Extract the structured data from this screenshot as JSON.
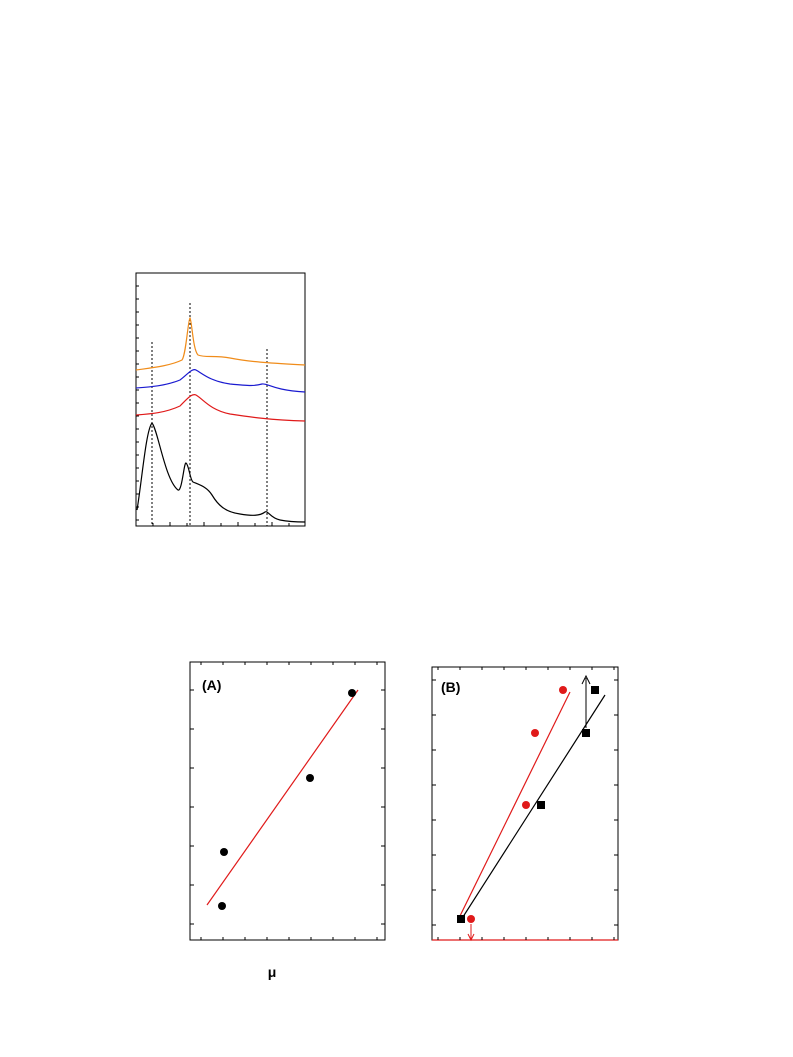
{
  "figure": {
    "panel_a_label": "(A)",
    "panel_b_label": "(B)",
    "x_axis_symbol": "μ"
  }
}
